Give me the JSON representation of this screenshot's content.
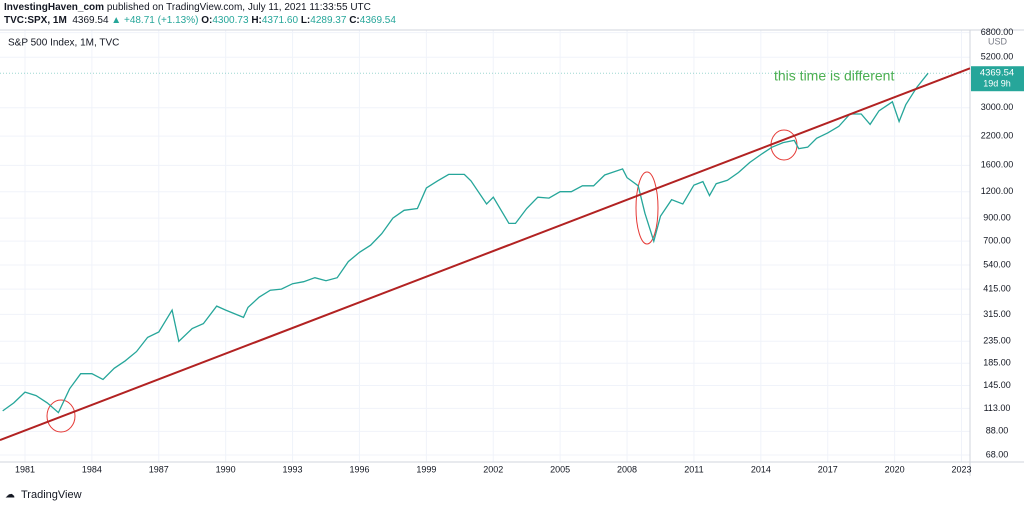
{
  "header": {
    "author": "InvestingHaven_com",
    "published": "published on TradingView.com, July 11, 2021 11:33:55 UTC",
    "symbol": "TVC:SPX, 1M",
    "last": "4369.54",
    "change": "▲ +48.71 (+1.13%)",
    "ohlc": [
      {
        "label": "O:",
        "value": "4300.73"
      },
      {
        "label": "H:",
        "value": "4371.60"
      },
      {
        "label": "L:",
        "value": "4289.37"
      },
      {
        "label": "C:",
        "value": "4369.54"
      }
    ]
  },
  "footer": {
    "brand": "TradingView"
  },
  "chart_data": {
    "type": "line",
    "title": "S&P 500 Index, 1M, TVC",
    "currency": "USD",
    "log_scale": true,
    "grid": true,
    "annotation": "this time is different",
    "xlim": [
      1979.88,
      2023.38
    ],
    "xticks": [
      1981,
      1984,
      1987,
      1990,
      1993,
      1996,
      1999,
      2002,
      2005,
      2008,
      2011,
      2014,
      2017,
      2020,
      2023
    ],
    "ylim": [
      63,
      7000
    ],
    "yticks": [
      {
        "value": 68,
        "label": "68.00"
      },
      {
        "value": 88,
        "label": "88.00"
      },
      {
        "value": 113,
        "label": "113.00"
      },
      {
        "value": 145,
        "label": "145.00"
      },
      {
        "value": 185,
        "label": "185.00"
      },
      {
        "value": 235,
        "label": "235.00"
      },
      {
        "value": 315,
        "label": "315.00"
      },
      {
        "value": 415,
        "label": "415.00"
      },
      {
        "value": 540,
        "label": "540.00"
      },
      {
        "value": 700,
        "label": "700.00"
      },
      {
        "value": 900,
        "label": "900.00"
      },
      {
        "value": 1200,
        "label": "1200.00"
      },
      {
        "value": 1600,
        "label": "1600.00"
      },
      {
        "value": 2200,
        "label": "2200.00"
      },
      {
        "value": 3000,
        "label": "3000.00"
      },
      {
        "value": 5200,
        "label": "5200.00"
      },
      {
        "value": 6800,
        "label": "6800.00"
      }
    ],
    "last_price": {
      "value": 4369.54,
      "countdown": "19d 9h",
      "color": "#26a69a"
    },
    "series": [
      {
        "name": "SPX",
        "color": "#26a69a",
        "x": [
          1980.0,
          1980.5,
          1981.0,
          1981.5,
          1982.0,
          1982.5,
          1983.0,
          1983.5,
          1984.0,
          1984.5,
          1985.0,
          1985.5,
          1986.0,
          1986.5,
          1987.0,
          1987.6,
          1987.9,
          1988.5,
          1989.0,
          1989.6,
          1990.0,
          1990.8,
          1991.0,
          1991.5,
          1992.0,
          1992.5,
          1993.0,
          1993.5,
          1994.0,
          1994.5,
          1995.0,
          1995.5,
          1996.0,
          1996.5,
          1997.0,
          1997.5,
          1998.0,
          1998.6,
          1999.0,
          1999.5,
          2000.0,
          2000.7,
          2001.0,
          2001.7,
          2002.0,
          2002.7,
          2003.0,
          2003.5,
          2004.0,
          2004.5,
          2005.0,
          2005.5,
          2006.0,
          2006.5,
          2007.0,
          2007.8,
          2008.0,
          2008.5,
          2008.8,
          2009.2,
          2009.5,
          2010.0,
          2010.5,
          2011.0,
          2011.4,
          2011.7,
          2012.0,
          2012.5,
          2013.0,
          2013.5,
          2014.0,
          2014.5,
          2015.0,
          2015.5,
          2015.7,
          2016.1,
          2016.5,
          2017.0,
          2017.5,
          2018.0,
          2018.5,
          2018.9,
          2019.3,
          2019.9,
          2020.2,
          2020.5,
          2021.0,
          2021.5
        ],
        "values": [
          110,
          120,
          135,
          130,
          120,
          108,
          140,
          165,
          165,
          155,
          175,
          190,
          210,
          245,
          260,
          330,
          235,
          270,
          285,
          345,
          330,
          305,
          340,
          380,
          410,
          415,
          440,
          450,
          470,
          455,
          470,
          560,
          620,
          670,
          760,
          900,
          980,
          1000,
          1250,
          1350,
          1450,
          1450,
          1350,
          1050,
          1130,
          850,
          850,
          1000,
          1130,
          1120,
          1200,
          1200,
          1280,
          1280,
          1440,
          1540,
          1400,
          1280,
          950,
          700,
          920,
          1100,
          1050,
          1290,
          1340,
          1150,
          1310,
          1360,
          1480,
          1650,
          1800,
          1950,
          2050,
          2100,
          1920,
          1950,
          2150,
          2280,
          2450,
          2800,
          2800,
          2500,
          2900,
          3200,
          2580,
          3100,
          3750,
          4369.54
        ]
      }
    ],
    "trendline": {
      "color": "#b22222",
      "x": [
        1979.88,
        2023.38
      ],
      "values": [
        80,
        4610
      ]
    }
  }
}
